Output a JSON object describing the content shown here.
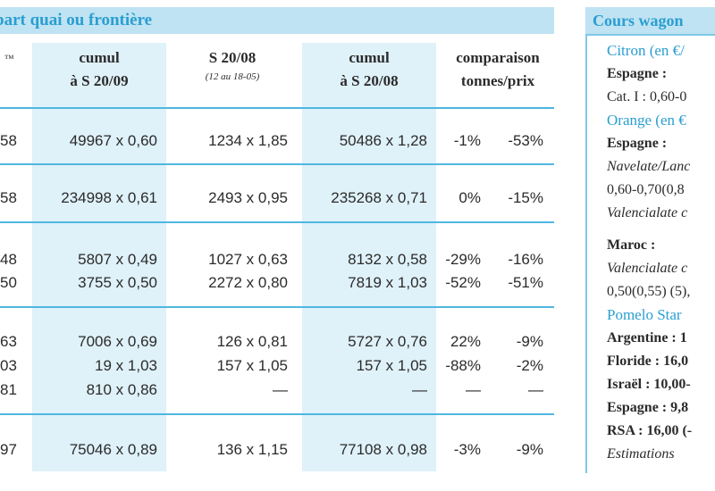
{
  "header": {
    "left_title": "part quai ou frontière",
    "right_title": "Cours wagon"
  },
  "columns": [
    {
      "line1": "",
      "line2": "™"
    },
    {
      "line1": "cumul",
      "line2": "à S 20/09"
    },
    {
      "line1": "S 20/08",
      "line2": "(12 au 18-05)"
    },
    {
      "line1": "cumul",
      "line2": "à S 20/08"
    },
    {
      "line1": "comparaison",
      "line2": "tonnes/prix"
    }
  ],
  "rows": [
    {
      "c0": "58",
      "c1": "49967 x 0,60",
      "c2": "1234 x 1,85",
      "c3": "50486 x 1,28",
      "c4": "-1%",
      "c5": "-53%"
    },
    {
      "c0": "58",
      "c1": "234998 x 0,61",
      "c2": "2493 x 0,95",
      "c3": "235268 x 0,71",
      "c4": "0%",
      "c5": "-15%"
    },
    {
      "c0": "48",
      "c1": "5807 x 0,49",
      "c2": "1027 x 0,63",
      "c3": "8132 x 0,58",
      "c4": "-29%",
      "c5": "-16%"
    },
    {
      "c0": "50",
      "c1": "3755 x 0,50",
      "c2": "2272 x 0,80",
      "c3": "7819 x 1,03",
      "c4": "-52%",
      "c5": "-51%"
    },
    {
      "c0": "63",
      "c1": "7006 x 0,69",
      "c2": "126 x 0,81",
      "c3": "5727 x 0,76",
      "c4": "22%",
      "c5": "-9%"
    },
    {
      "c0": "03",
      "c1": "19 x 1,03",
      "c2": "157 x 1,05",
      "c3": "157 x 1,05",
      "c4": "-88%",
      "c5": "-2%"
    },
    {
      "c0": "81",
      "c1": "810 x 0,86",
      "c2": "—",
      "c3": "—",
      "c4": "—",
      "c5": "—"
    },
    {
      "c0": "97",
      "c1": "75046 x 0,89",
      "c2": "136 x 1,15",
      "c3": "77108 x 0,98",
      "c4": "-3%",
      "c5": "-9%"
    }
  ],
  "right_panel": [
    {
      "text": "Citron (en €/",
      "style": "blue"
    },
    {
      "text": "Espagne :",
      "style": "bold"
    },
    {
      "text": "Cat. I : 0,60-0",
      "style": ""
    },
    {
      "text": "Orange (en €",
      "style": "blue"
    },
    {
      "text": "Espagne :",
      "style": "bold"
    },
    {
      "text": "Navelate/Lanc",
      "style": "ital"
    },
    {
      "text": "0,60-0,70(0,8",
      "style": ""
    },
    {
      "text": "Valencialate c",
      "style": "ital"
    },
    {
      "text": "Maroc :",
      "style": "bold"
    },
    {
      "text": "Valencialate  c",
      "style": "ital"
    },
    {
      "text": "0,50(0,55) (5),",
      "style": ""
    },
    {
      "text": "Pomelo Star",
      "style": "blue"
    },
    {
      "text": "Argentine : 1",
      "style": "bold"
    },
    {
      "text": "Floride : 16,0",
      "style": "bold"
    },
    {
      "text": "Israël : 10,00-",
      "style": "bold"
    },
    {
      "text": "Espagne : 9,8",
      "style": "bold"
    },
    {
      "text": "RSA : 16,00 (-",
      "style": "bold"
    },
    {
      "text": "Estimations",
      "style": "ital"
    }
  ]
}
